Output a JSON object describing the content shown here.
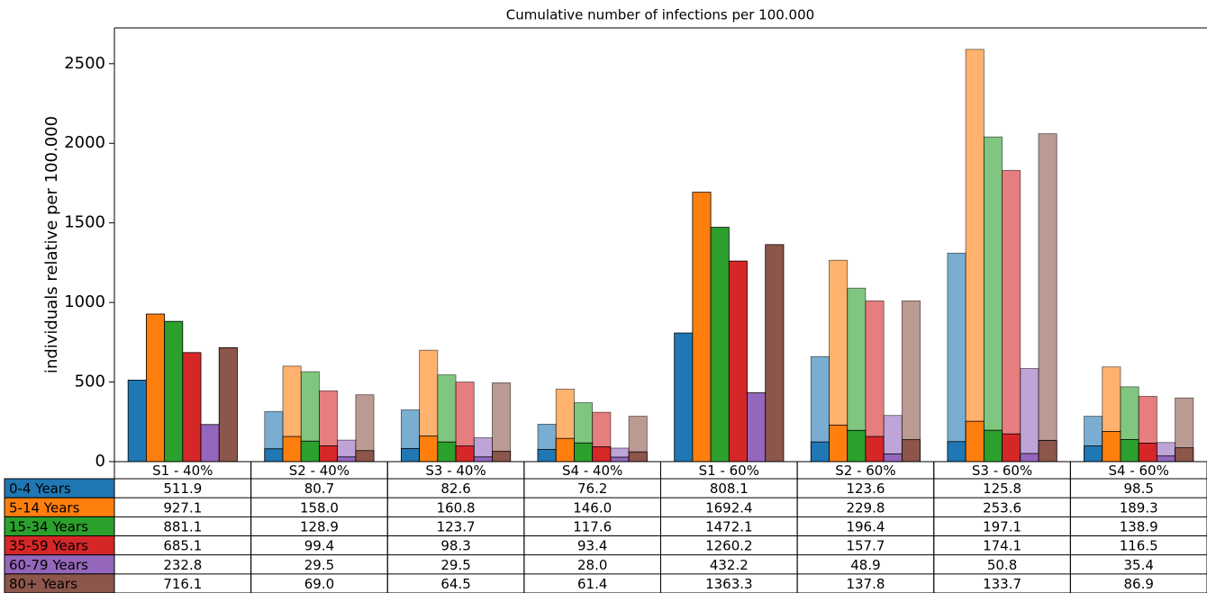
{
  "chart_data": {
    "type": "bar",
    "title": "Cumulative number of infections per 100.000",
    "y_label": "individuals relative per 100.000",
    "categories": [
      "S1 - 40%",
      "S2 - 40%",
      "S3 - 40%",
      "S4 - 40%",
      "S1 - 60%",
      "S2 - 60%",
      "S3 - 60%",
      "S4 - 60%"
    ],
    "ylim": [
      0,
      2725
    ],
    "yticks": [
      0,
      500,
      1000,
      1500,
      2000,
      2500
    ],
    "series": [
      {
        "name": "0-4 Years",
        "color": "#1f77b4",
        "values": [
          511.9,
          80.7,
          82.6,
          76.2,
          808.1,
          123.6,
          125.8,
          98.5
        ],
        "value_labels": [
          "511.9",
          "80.7",
          "82.6",
          "76.2",
          "808.1",
          "123.6",
          "125.8",
          "98.5"
        ],
        "shadow_values": [
          null,
          315,
          325,
          235,
          null,
          660,
          1310,
          285
        ]
      },
      {
        "name": "5-14 Years",
        "color": "#ff7f0e",
        "values": [
          927.1,
          158.0,
          160.8,
          146.0,
          1692.4,
          229.8,
          253.6,
          189.3
        ],
        "value_labels": [
          "927.1",
          "158.0",
          "160.8",
          "146.0",
          "1692.4",
          "229.8",
          "253.6",
          "189.3"
        ],
        "shadow_values": [
          null,
          600,
          700,
          455,
          null,
          1265,
          2590,
          595
        ]
      },
      {
        "name": "15-34 Years",
        "color": "#2ca02c",
        "values": [
          881.1,
          128.9,
          123.7,
          117.6,
          1472.1,
          196.4,
          197.1,
          138.9
        ],
        "value_labels": [
          "881.1",
          "128.9",
          "123.7",
          "117.6",
          "1472.1",
          "196.4",
          "197.1",
          "138.9"
        ],
        "shadow_values": [
          null,
          565,
          545,
          370,
          null,
          1090,
          2040,
          470
        ]
      },
      {
        "name": "35-59 Years",
        "color": "#d62728",
        "values": [
          685.1,
          99.4,
          98.3,
          93.4,
          1260.2,
          157.7,
          174.1,
          116.5
        ],
        "value_labels": [
          "685.1",
          "99.4",
          "98.3",
          "93.4",
          "1260.2",
          "157.7",
          "174.1",
          "116.5"
        ],
        "shadow_values": [
          null,
          445,
          500,
          310,
          null,
          1010,
          1830,
          410
        ]
      },
      {
        "name": "60-79 Years",
        "color": "#9467bd",
        "values": [
          232.8,
          29.5,
          29.5,
          28.0,
          432.2,
          48.9,
          50.8,
          35.4
        ],
        "value_labels": [
          "232.8",
          "29.5",
          "29.5",
          "28.0",
          "432.2",
          "48.9",
          "50.8",
          "35.4"
        ],
        "shadow_values": [
          null,
          135,
          150,
          85,
          null,
          290,
          585,
          120
        ]
      },
      {
        "name": "80+ Years",
        "color": "#8c564b",
        "values": [
          716.1,
          69.0,
          64.5,
          61.4,
          1363.3,
          137.8,
          133.7,
          86.9
        ],
        "value_labels": [
          "716.1",
          "69.0",
          "64.5",
          "61.4",
          "1363.3",
          "137.8",
          "133.7",
          "86.9"
        ],
        "shadow_values": [
          null,
          420,
          495,
          285,
          null,
          1010,
          2060,
          400
        ]
      }
    ]
  }
}
